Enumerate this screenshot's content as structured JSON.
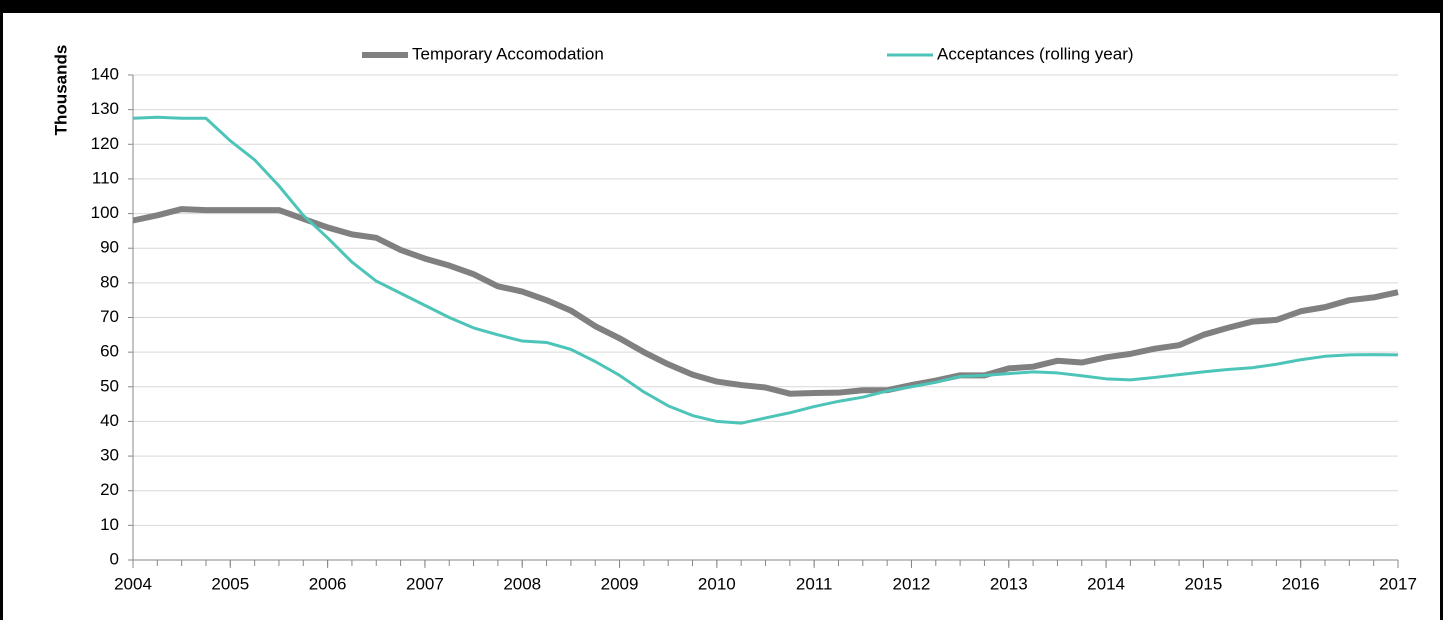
{
  "chart_data": {
    "type": "line",
    "ylabel": "Thousands",
    "x": [
      2004,
      2004.25,
      2004.5,
      2004.75,
      2005,
      2005.25,
      2005.5,
      2005.75,
      2006,
      2006.25,
      2006.5,
      2006.75,
      2007,
      2007.25,
      2007.5,
      2007.75,
      2008,
      2008.25,
      2008.5,
      2008.75,
      2009,
      2009.25,
      2009.5,
      2009.75,
      2010,
      2010.25,
      2010.5,
      2010.75,
      2011,
      2011.25,
      2011.5,
      2011.75,
      2012,
      2012.25,
      2012.5,
      2012.75,
      2013,
      2013.25,
      2013.5,
      2013.75,
      2014,
      2014.25,
      2014.5,
      2014.75,
      2015,
      2015.25,
      2015.5,
      2015.75,
      2016,
      2016.25,
      2016.5,
      2016.75,
      2017
    ],
    "series": [
      {
        "name": "Temporary Accomodation",
        "color": "#808080",
        "width": 6,
        "values": [
          98,
          99.5,
          101.3,
          101,
          101,
          101,
          101,
          98.5,
          96,
          94,
          93,
          89.5,
          87,
          85,
          82.5,
          79,
          77.5,
          75,
          72,
          67.5,
          64,
          60,
          56.5,
          53.5,
          51.5,
          50.5,
          49.8,
          48,
          48.2,
          48.3,
          49,
          49,
          50.5,
          51.8,
          53.3,
          53.3,
          55.3,
          55.8,
          57.5,
          57,
          58.5,
          59.5,
          61,
          62,
          65,
          67,
          68.8,
          69.3,
          71.8,
          73,
          75,
          75.8,
          77.3
        ]
      },
      {
        "name": "Acceptances (rolling year)",
        "color": "#4dc4b8",
        "width": 3,
        "values": [
          127.5,
          127.8,
          127.5,
          127.5,
          121,
          115.5,
          108,
          99.5,
          93,
          86,
          80.5,
          77,
          73.5,
          70,
          67,
          65,
          63.2,
          62.8,
          60.8,
          57.3,
          53.3,
          48.5,
          44.5,
          41.7,
          40,
          39.5,
          41,
          42.5,
          44.3,
          45.8,
          47,
          48.8,
          50,
          51.3,
          53,
          53.3,
          53.8,
          54.3,
          54,
          53.2,
          52.3,
          52,
          52.7,
          53.5,
          54.3,
          55,
          55.5,
          56.5,
          57.8,
          58.8,
          59.2,
          59.3,
          59.2
        ]
      }
    ],
    "xlim": [
      2004,
      2017
    ],
    "xticks": [
      2004,
      2005,
      2006,
      2007,
      2008,
      2009,
      2010,
      2011,
      2012,
      2013,
      2014,
      2015,
      2016,
      2017
    ],
    "ylim": [
      0,
      140
    ],
    "yticks": [
      0,
      10,
      20,
      30,
      40,
      50,
      60,
      70,
      80,
      90,
      100,
      110,
      120,
      130,
      140
    ],
    "grid": true,
    "legend": "top"
  }
}
